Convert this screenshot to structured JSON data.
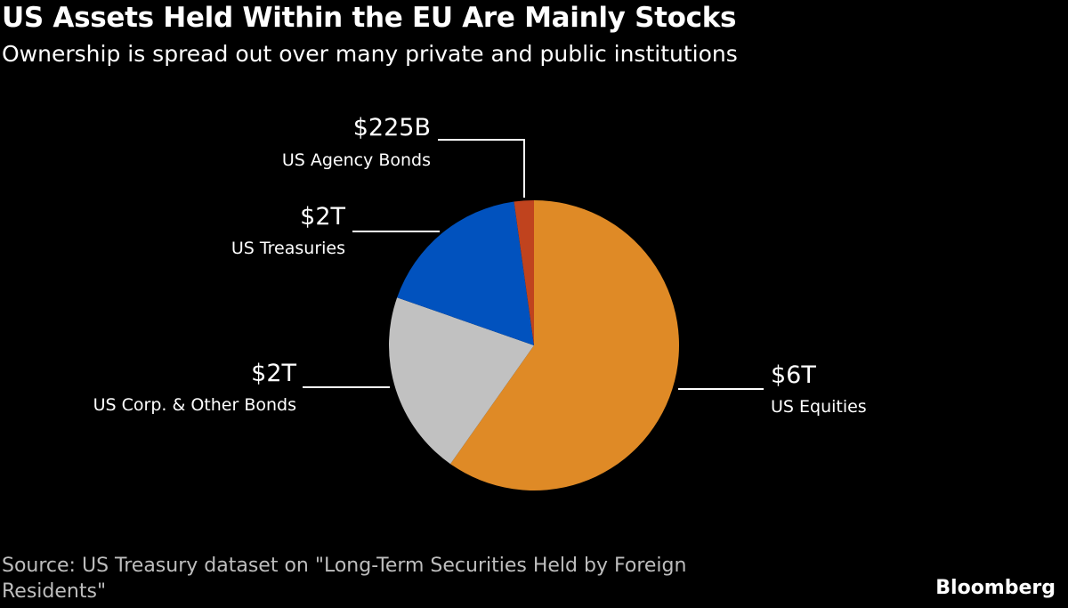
{
  "chart_data": {
    "type": "pie",
    "title": "US Assets Held Within the EU Are Mainly Stocks",
    "subtitle": "Ownership is spread out over many private and public institutions",
    "unit": "USD trillions",
    "slices": [
      {
        "label": "US Equities",
        "value_label": "$6T",
        "value": 6.1,
        "color": "#DF8A26"
      },
      {
        "label": "US Corp. & Other Bonds",
        "value_label": "$2T",
        "value": 2.1,
        "color": "#C1C1C1"
      },
      {
        "label": "US Treasuries",
        "value_label": "$2T",
        "value": 1.78,
        "color": "#0152BE"
      },
      {
        "label": "US Agency Bonds",
        "value_label": "$225B",
        "value": 0.225,
        "color": "#C0431E"
      }
    ],
    "start": "12 o'clock, clockwise"
  },
  "source": "Source: US Treasury dataset on \"Long-Term Securities Held by Foreign Residents\"",
  "logo": "Bloomberg"
}
